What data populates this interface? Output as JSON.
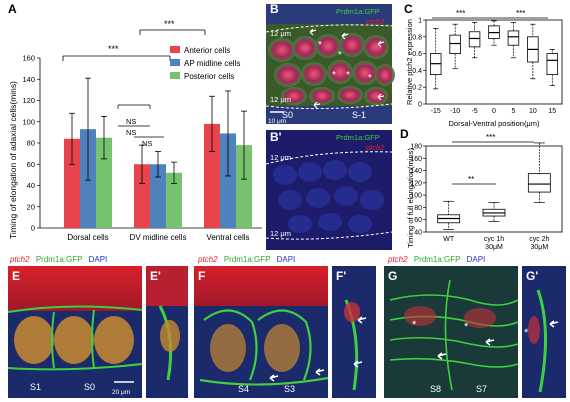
{
  "panels": {
    "A": "A",
    "B": "B",
    "Bp": "B'",
    "C": "C",
    "D": "D",
    "E": "E",
    "Ep": "E'",
    "F": "F",
    "Fp": "F'",
    "G": "G",
    "Gp": "G'"
  },
  "colors": {
    "anterior": "#e8444d",
    "ap_midline": "#4f81bd",
    "posterior": "#77c26e",
    "ptch2_red": "#e8202a",
    "gfp_green": "#3fcf3f",
    "dapi_blue": "#2244d0"
  },
  "chart_data": [
    {
      "panel": "A",
      "type": "bar",
      "ylabel": "Timing of elongation of adaxial cells(mins)",
      "categories": [
        "Dorsal cells",
        "DV midline cells",
        "Ventral cells"
      ],
      "ylim": [
        0,
        160
      ],
      "yticks": [
        0,
        20,
        40,
        60,
        80,
        100,
        120,
        140,
        160
      ],
      "series": [
        {
          "name": "Anterior cells",
          "values": [
            84,
            60,
            98
          ],
          "err": [
            24,
            18,
            26
          ]
        },
        {
          "name": "AP midline cells",
          "values": [
            93,
            60,
            89
          ],
          "err": [
            48,
            12,
            40
          ]
        },
        {
          "name": "Posterior cells",
          "values": [
            85,
            52,
            78
          ],
          "err": [
            20,
            10,
            32
          ]
        }
      ],
      "legend": "top-right",
      "annotations": [
        "***",
        "***",
        "NS",
        "NS",
        "NS"
      ]
    },
    {
      "panel": "C",
      "type": "box",
      "ylabel": "Relative ptch2 expression",
      "xlabel": "Dorsal-Ventral position(μm)",
      "categories": [
        "-15",
        "-10",
        "-5",
        "0",
        "5",
        "10",
        "15"
      ],
      "ylim": [
        0,
        1
      ],
      "yticks": [
        0,
        0.2,
        0.4,
        0.6,
        0.8,
        1
      ],
      "boxes": [
        {
          "min": 0.18,
          "q1": 0.35,
          "median": 0.48,
          "q3": 0.6,
          "max": 0.9
        },
        {
          "min": 0.42,
          "q1": 0.6,
          "median": 0.72,
          "q3": 0.82,
          "max": 0.95
        },
        {
          "min": 0.55,
          "q1": 0.68,
          "median": 0.78,
          "q3": 0.86,
          "max": 0.97
        },
        {
          "min": 0.7,
          "q1": 0.78,
          "median": 0.85,
          "q3": 0.93,
          "max": 0.99
        },
        {
          "min": 0.55,
          "q1": 0.7,
          "median": 0.8,
          "q3": 0.87,
          "max": 0.97
        },
        {
          "min": 0.3,
          "q1": 0.5,
          "median": 0.65,
          "q3": 0.8,
          "max": 0.95
        },
        {
          "min": 0.22,
          "q1": 0.35,
          "median": 0.52,
          "q3": 0.6,
          "max": 0.65
        }
      ],
      "annotations": [
        "***",
        "***"
      ]
    },
    {
      "panel": "D",
      "type": "box",
      "ylabel": "Timing of full elongation(mins)",
      "categories": [
        "WT",
        "cyc 1h\n30μM",
        "cyc 2h\n30μM"
      ],
      "ylim": [
        40,
        180
      ],
      "yticks": [
        40,
        60,
        80,
        100,
        120,
        140,
        160,
        180
      ],
      "boxes": [
        {
          "min": 44,
          "q1": 55,
          "median": 62,
          "q3": 68,
          "max": 90
        },
        {
          "min": 57,
          "q1": 66,
          "median": 71,
          "q3": 77,
          "max": 88
        },
        {
          "min": 88,
          "q1": 105,
          "median": 118,
          "q3": 135,
          "max": 185
        }
      ],
      "annotations": [
        "**",
        "***"
      ]
    }
  ],
  "micrographs": {
    "B": {
      "title_green": "Prdm1a:GFP",
      "title_red": "ptch2",
      "dorsal_mark": "12 μm",
      "ventral_mark": "12 μm",
      "scale": "10 μm",
      "somite1": "S0",
      "somite2": "S-1"
    },
    "Bp": {
      "title_green": "Prdm1a:GFP",
      "title_red": "ptch2",
      "dorsal_mark": "12 μm",
      "ventral_mark": "12 μm"
    },
    "E": {
      "label_red": "ptch2",
      "label_green": "Prdm1a:GFP",
      "label_blue": "DAPI",
      "somite1": "S1",
      "somite2": "S0",
      "scale": "20 μm"
    },
    "F": {
      "label_red": "ptch2",
      "label_green": "Prdm1a:GFP",
      "label_blue": "DAPI",
      "somite1": "S4",
      "somite2": "S3"
    },
    "G": {
      "label_red": "ptch2",
      "label_green": "Prdm1a:GFP",
      "label_blue": "DAPI",
      "somite1": "S8",
      "somite2": "S7"
    }
  }
}
